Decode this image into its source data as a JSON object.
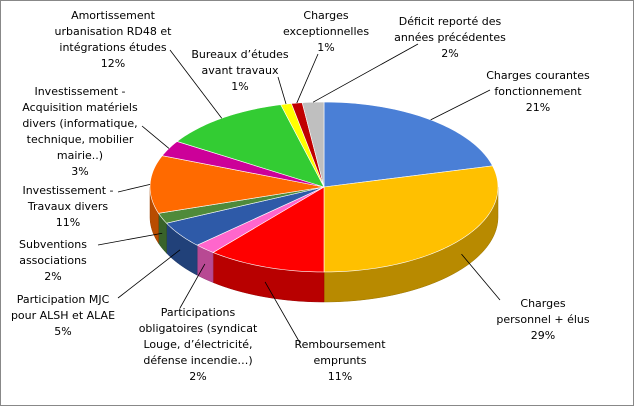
{
  "chart_data": {
    "type": "pie3d",
    "categories": [
      "Charges courantes fonctionnement",
      "Charges personnel + élus",
      "Remboursement emprunts",
      "Participations obligatoires (syndicat Louge, d’électricité, défense incendie…)",
      "Participation MJC pour ALSH et ALAE",
      "Subventions associations",
      "Investissement - Travaux divers",
      "Investissement - Acquisition matériels divers (informatique, technique, mobilier mairie..)",
      "Amortissement urbanisation RD48 et intégrations études",
      "Bureaux d’études avant travaux",
      "Charges exceptionnelles",
      "Déficit reporté des années précédentes"
    ],
    "values": [
      21,
      29,
      11,
      2,
      5,
      2,
      11,
      3,
      12,
      1,
      1,
      2
    ],
    "value_labels": [
      "21%",
      "29%",
      "11%",
      "2%",
      "5%",
      "2%",
      "11%",
      "3%",
      "12%",
      "1%",
      "1%",
      "2%"
    ],
    "colors": [
      "#4a7fd6",
      "#ffc000",
      "#ff0000",
      "#ff66cc",
      "#2e5aa8",
      "#4f8a3a",
      "#ff6a00",
      "#cc0099",
      "#33cc33",
      "#ffff00",
      "#c00000",
      "#bfbfbf"
    ]
  }
}
